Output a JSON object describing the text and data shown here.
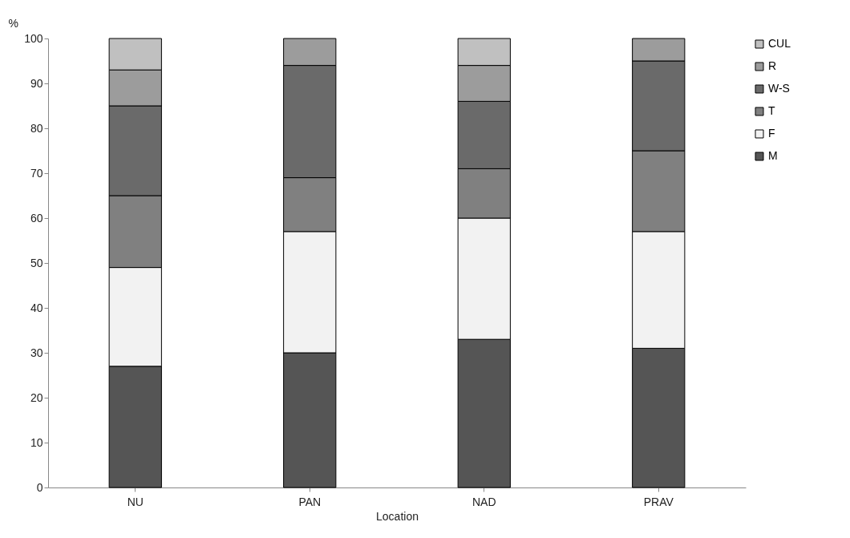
{
  "chart_data": {
    "type": "bar",
    "stacked": true,
    "xlabel": "Location",
    "ylabel": "%",
    "categories": [
      "NU",
      "PAN",
      "NAD",
      "PRAV"
    ],
    "series": [
      {
        "name": "M",
        "color": "#555555",
        "values": [
          27,
          30,
          33,
          31
        ]
      },
      {
        "name": "F",
        "color": "#f2f2f2",
        "values": [
          22,
          27,
          27,
          26
        ]
      },
      {
        "name": "T",
        "color": "#808080",
        "values": [
          16,
          12,
          11,
          18
        ]
      },
      {
        "name": "W-S",
        "color": "#6a6a6a",
        "values": [
          20,
          25,
          15,
          20
        ]
      },
      {
        "name": "R",
        "color": "#9c9c9c",
        "values": [
          8,
          6,
          8,
          5
        ]
      },
      {
        "name": "CUL",
        "color": "#c0c0c0",
        "values": [
          7,
          0,
          6,
          0
        ]
      }
    ],
    "ylim": [
      0,
      100
    ],
    "yticks": [
      0,
      10,
      20,
      30,
      40,
      50,
      60,
      70,
      80,
      90,
      100
    ],
    "grid": false,
    "legend": "right"
  }
}
